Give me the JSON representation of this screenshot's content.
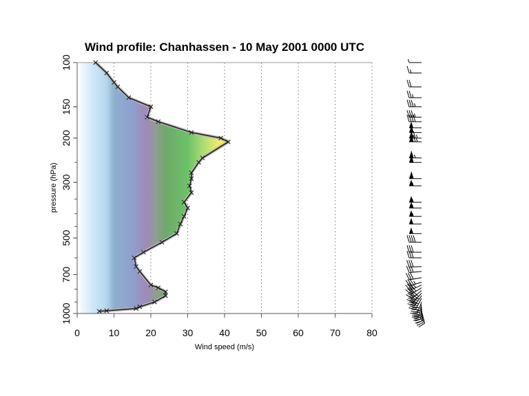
{
  "chart_data": {
    "type": "area",
    "title": "Wind profile: Chanhassen - 10 May 2001 0000 UTC",
    "xlabel": "Wind speed (m/s)",
    "ylabel": "pressure (hPa)",
    "xlim": [
      0,
      80
    ],
    "ylim": [
      1000,
      100
    ],
    "y_scale": "log",
    "x_ticks": [
      0,
      10,
      20,
      30,
      40,
      50,
      60,
      70,
      80
    ],
    "y_ticks": [
      100,
      150,
      200,
      300,
      500,
      700,
      1000
    ],
    "grid": "vertical dotted",
    "series": [
      {
        "values": [
          {
            "wind_speed": 6,
            "pressure": 980
          },
          {
            "wind_speed": 8,
            "pressure": 975
          },
          {
            "wind_speed": 16,
            "pressure": 955
          },
          {
            "wind_speed": 17,
            "pressure": 940
          },
          {
            "wind_speed": 21,
            "pressure": 900
          },
          {
            "wind_speed": 24,
            "pressure": 850
          },
          {
            "wind_speed": 24,
            "pressure": 820
          },
          {
            "wind_speed": 22,
            "pressure": 790
          },
          {
            "wind_speed": 20,
            "pressure": 770
          },
          {
            "wind_speed": 17,
            "pressure": 680
          },
          {
            "wind_speed": 16,
            "pressure": 650
          },
          {
            "wind_speed": 15.5,
            "pressure": 600
          },
          {
            "wind_speed": 18,
            "pressure": 570
          },
          {
            "wind_speed": 23,
            "pressure": 520
          },
          {
            "wind_speed": 27,
            "pressure": 480
          },
          {
            "wind_speed": 28,
            "pressure": 440
          },
          {
            "wind_speed": 29,
            "pressure": 410
          },
          {
            "wind_speed": 30,
            "pressure": 380
          },
          {
            "wind_speed": 29,
            "pressure": 360
          },
          {
            "wind_speed": 31,
            "pressure": 330
          },
          {
            "wind_speed": 30.5,
            "pressure": 310
          },
          {
            "wind_speed": 31,
            "pressure": 290
          },
          {
            "wind_speed": 31,
            "pressure": 275
          },
          {
            "wind_speed": 33,
            "pressure": 250
          },
          {
            "wind_speed": 34,
            "pressure": 240
          },
          {
            "wind_speed": 41,
            "pressure": 207
          },
          {
            "wind_speed": 39,
            "pressure": 200
          },
          {
            "wind_speed": 31,
            "pressure": 190
          },
          {
            "wind_speed": 22,
            "pressure": 172
          },
          {
            "wind_speed": 19,
            "pressure": 165
          },
          {
            "wind_speed": 20,
            "pressure": 150
          },
          {
            "wind_speed": 14,
            "pressure": 138
          },
          {
            "wind_speed": 11,
            "pressure": 125
          },
          {
            "wind_speed": 10,
            "pressure": 120
          },
          {
            "wind_speed": 8,
            "pressure": 110
          },
          {
            "wind_speed": 5,
            "pressure": 100
          }
        ]
      }
    ],
    "wind_barbs": [
      {
        "pressure": 100,
        "speed": 5,
        "direction": 270
      },
      {
        "pressure": 110,
        "speed": 8,
        "direction": 270
      },
      {
        "pressure": 125,
        "speed": 11,
        "direction": 270
      },
      {
        "pressure": 138,
        "speed": 14,
        "direction": 270
      },
      {
        "pressure": 150,
        "speed": 20,
        "direction": 270
      },
      {
        "pressure": 165,
        "speed": 19,
        "direction": 270
      },
      {
        "pressure": 172,
        "speed": 22,
        "direction": 270
      },
      {
        "pressure": 182,
        "speed": 27,
        "direction": 270
      },
      {
        "pressure": 190,
        "speed": 31,
        "direction": 270
      },
      {
        "pressure": 200,
        "speed": 39,
        "direction": 270
      },
      {
        "pressure": 207,
        "speed": 41,
        "direction": 270
      },
      {
        "pressure": 240,
        "speed": 34,
        "direction": 270
      },
      {
        "pressure": 250,
        "speed": 33,
        "direction": 270
      },
      {
        "pressure": 290,
        "speed": 31,
        "direction": 270
      },
      {
        "pressure": 310,
        "speed": 30.5,
        "direction": 270
      },
      {
        "pressure": 360,
        "speed": 29,
        "direction": 270
      },
      {
        "pressure": 380,
        "speed": 30,
        "direction": 270
      },
      {
        "pressure": 410,
        "speed": 29,
        "direction": 270
      },
      {
        "pressure": 440,
        "speed": 28,
        "direction": 270
      },
      {
        "pressure": 480,
        "speed": 27,
        "direction": 270
      },
      {
        "pressure": 520,
        "speed": 23,
        "direction": 270
      },
      {
        "pressure": 570,
        "speed": 18,
        "direction": 270
      },
      {
        "pressure": 600,
        "speed": 15.5,
        "direction": 270
      },
      {
        "pressure": 650,
        "speed": 16,
        "direction": 268
      },
      {
        "pressure": 680,
        "speed": 17,
        "direction": 265
      },
      {
        "pressure": 720,
        "speed": 18,
        "direction": 260
      },
      {
        "pressure": 750,
        "speed": 19,
        "direction": 252
      },
      {
        "pressure": 770,
        "speed": 20,
        "direction": 245
      },
      {
        "pressure": 790,
        "speed": 22,
        "direction": 238
      },
      {
        "pressure": 810,
        "speed": 23,
        "direction": 230
      },
      {
        "pressure": 830,
        "speed": 24,
        "direction": 222
      },
      {
        "pressure": 850,
        "speed": 24,
        "direction": 215
      },
      {
        "pressure": 870,
        "speed": 23,
        "direction": 208
      },
      {
        "pressure": 900,
        "speed": 21,
        "direction": 200
      },
      {
        "pressure": 920,
        "speed": 19,
        "direction": 192
      },
      {
        "pressure": 940,
        "speed": 17,
        "direction": 185
      },
      {
        "pressure": 955,
        "speed": 16,
        "direction": 178
      },
      {
        "pressure": 970,
        "speed": 12,
        "direction": 172
      },
      {
        "pressure": 980,
        "speed": 6,
        "direction": 165
      }
    ]
  }
}
